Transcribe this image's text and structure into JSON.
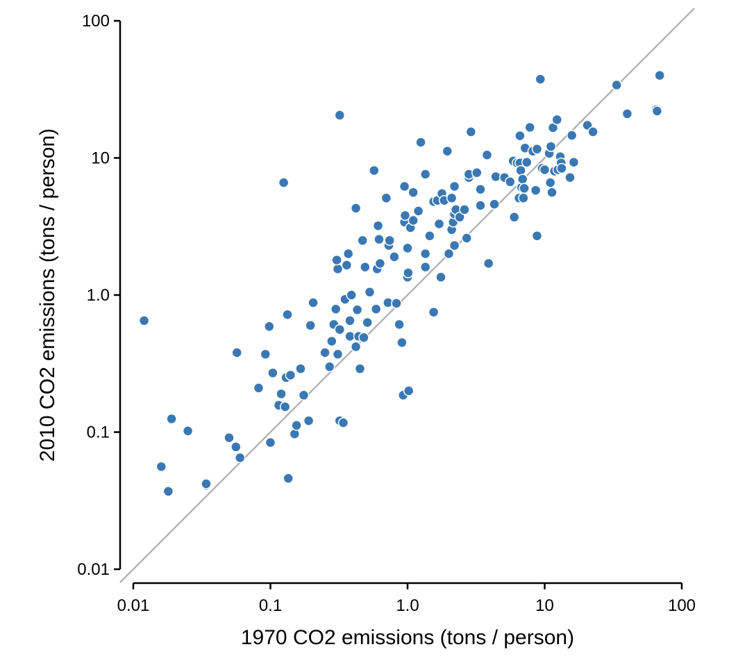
{
  "chart_data": {
    "type": "scatter",
    "title": "",
    "xlabel": "1970 CO2 emissions (tons / person)",
    "ylabel": "2010 CO2 emissions (tons / person)",
    "x_scale": "log",
    "y_scale": "log",
    "xlim": [
      0.0085,
      120
    ],
    "ylim": [
      0.0085,
      120
    ],
    "x_ticks": [
      0.01,
      0.1,
      1.0,
      10,
      100
    ],
    "x_tick_labels": [
      "0.01",
      "0.1",
      "1.0",
      "10",
      "100"
    ],
    "y_ticks": [
      0.01,
      0.1,
      1.0,
      10,
      100
    ],
    "y_tick_labels": [
      "0.01",
      "0.1",
      "1.0",
      "10",
      "100"
    ],
    "reference_line": "y = x",
    "grid": false,
    "legend": "none",
    "point_color": "#3a78b3",
    "reference_line_color": "#b3b3b3",
    "points": [
      [
        0.012,
        0.65
      ],
      [
        0.016,
        0.056
      ],
      [
        0.018,
        0.037
      ],
      [
        0.019,
        0.125
      ],
      [
        0.025,
        0.102
      ],
      [
        0.034,
        0.041
      ],
      [
        0.034,
        0.042
      ],
      [
        0.05,
        0.091
      ],
      [
        0.056,
        0.078
      ],
      [
        0.057,
        0.38
      ],
      [
        0.06,
        0.065
      ],
      [
        0.082,
        0.21
      ],
      [
        0.092,
        0.37
      ],
      [
        0.098,
        0.59
      ],
      [
        0.1,
        0.084
      ],
      [
        0.104,
        0.27
      ],
      [
        0.115,
        0.157
      ],
      [
        0.12,
        0.19
      ],
      [
        0.125,
        6.6
      ],
      [
        0.128,
        0.153
      ],
      [
        0.13,
        0.25
      ],
      [
        0.133,
        0.72
      ],
      [
        0.135,
        0.046
      ],
      [
        0.14,
        0.26
      ],
      [
        0.15,
        0.097
      ],
      [
        0.155,
        0.112
      ],
      [
        0.166,
        0.29
      ],
      [
        0.175,
        0.186
      ],
      [
        0.19,
        0.121
      ],
      [
        0.196,
        0.6
      ],
      [
        0.205,
        0.88
      ],
      [
        0.25,
        0.38
      ],
      [
        0.27,
        0.3
      ],
      [
        0.28,
        0.46
      ],
      [
        0.29,
        0.61
      ],
      [
        0.3,
        0.79
      ],
      [
        0.31,
        1.55
      ],
      [
        0.305,
        1.8
      ],
      [
        0.31,
        0.37
      ],
      [
        0.32,
        0.121
      ],
      [
        0.32,
        0.56
      ],
      [
        0.32,
        20.5
      ],
      [
        0.34,
        0.117
      ],
      [
        0.35,
        0.93
      ],
      [
        0.36,
        1.65
      ],
      [
        0.37,
        2.0
      ],
      [
        0.38,
        0.5
      ],
      [
        0.38,
        0.65
      ],
      [
        0.39,
        1.0
      ],
      [
        0.42,
        4.3
      ],
      [
        0.42,
        0.42
      ],
      [
        0.43,
        0.78
      ],
      [
        0.44,
        0.5
      ],
      [
        0.45,
        0.29
      ],
      [
        0.47,
        2.5
      ],
      [
        0.48,
        0.49
      ],
      [
        0.49,
        1.6
      ],
      [
        0.51,
        0.63
      ],
      [
        0.53,
        1.05
      ],
      [
        0.57,
        8.1
      ],
      [
        0.59,
        0.79
      ],
      [
        0.6,
        1.55
      ],
      [
        0.62,
        2.55
      ],
      [
        0.61,
        3.2
      ],
      [
        0.63,
        1.7
      ],
      [
        0.7,
        5.1
      ],
      [
        0.72,
        0.88
      ],
      [
        0.73,
        2.3
      ],
      [
        0.74,
        2.5
      ],
      [
        0.8,
        1.9
      ],
      [
        0.83,
        0.87
      ],
      [
        0.87,
        0.61
      ],
      [
        0.91,
        0.45
      ],
      [
        0.93,
        0.186
      ],
      [
        0.95,
        3.4
      ],
      [
        0.95,
        6.2
      ],
      [
        0.96,
        3.8
      ],
      [
        1.0,
        2.2
      ],
      [
        1.0,
        1.35
      ],
      [
        1.01,
        1.45
      ],
      [
        1.02,
        0.2
      ],
      [
        1.05,
        3.1
      ],
      [
        1.1,
        3.5
      ],
      [
        1.1,
        5.6
      ],
      [
        1.2,
        4.1
      ],
      [
        1.25,
        13.0
      ],
      [
        1.35,
        1.6
      ],
      [
        1.35,
        2.0
      ],
      [
        1.35,
        7.6
      ],
      [
        1.45,
        2.7
      ],
      [
        1.55,
        0.75
      ],
      [
        1.55,
        4.8
      ],
      [
        1.65,
        4.9
      ],
      [
        1.7,
        3.3
      ],
      [
        1.75,
        1.35
      ],
      [
        1.78,
        5.5
      ],
      [
        1.85,
        4.9
      ],
      [
        1.95,
        11.2
      ],
      [
        2.0,
        2.0
      ],
      [
        2.1,
        3.0
      ],
      [
        2.1,
        5.1
      ],
      [
        2.15,
        3.4
      ],
      [
        2.2,
        2.3
      ],
      [
        2.2,
        3.9
      ],
      [
        2.25,
        4.2
      ],
      [
        2.2,
        6.2
      ],
      [
        2.4,
        3.7
      ],
      [
        2.6,
        4.2
      ],
      [
        2.7,
        2.6
      ],
      [
        2.8,
        7.2
      ],
      [
        2.8,
        7.6
      ],
      [
        2.9,
        15.5
      ],
      [
        3.2,
        7.8
      ],
      [
        3.4,
        4.5
      ],
      [
        3.4,
        5.9
      ],
      [
        3.8,
        10.5
      ],
      [
        3.9,
        1.7
      ],
      [
        4.3,
        4.6
      ],
      [
        4.4,
        7.3
      ],
      [
        5.1,
        7.2
      ],
      [
        5.6,
        6.7
      ],
      [
        5.9,
        9.5
      ],
      [
        6.0,
        3.7
      ],
      [
        6.3,
        9.2
      ],
      [
        6.5,
        5.1
      ],
      [
        6.6,
        9.2
      ],
      [
        6.6,
        14.5
      ],
      [
        6.7,
        8.1
      ],
      [
        6.8,
        6.1
      ],
      [
        6.9,
        7.0
      ],
      [
        7.0,
        5.1
      ],
      [
        7.1,
        6.0
      ],
      [
        7.2,
        11.8
      ],
      [
        7.4,
        9.3
      ],
      [
        7.8,
        16.7
      ],
      [
        8.2,
        11.2
      ],
      [
        8.6,
        5.8
      ],
      [
        8.8,
        11.6
      ],
      [
        8.8,
        2.7
      ],
      [
        9.3,
        37.5
      ],
      [
        9.6,
        8.4
      ],
      [
        10.0,
        8.2
      ],
      [
        10.8,
        10.8
      ],
      [
        11.0,
        6.6
      ],
      [
        11.1,
        12.1
      ],
      [
        11.3,
        5.6
      ],
      [
        11.5,
        16.6
      ],
      [
        11.8,
        8.0
      ],
      [
        12.3,
        19.0
      ],
      [
        12.5,
        8.2
      ],
      [
        13.0,
        10.2
      ],
      [
        13.2,
        9.2
      ],
      [
        13.3,
        8.4
      ],
      [
        15.3,
        7.2
      ],
      [
        15.8,
        14.6
      ],
      [
        16.3,
        9.3
      ],
      [
        20.5,
        17.3
      ],
      [
        22.5,
        15.5
      ],
      [
        33.5,
        34.0
      ],
      [
        40.0,
        21.0
      ],
      [
        65.0,
        22.5
      ],
      [
        66.0,
        22.0
      ],
      [
        69.0,
        40.0
      ]
    ]
  }
}
